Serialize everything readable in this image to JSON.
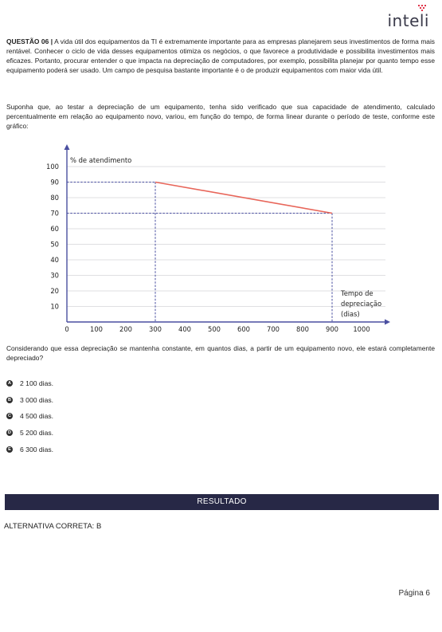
{
  "brand": {
    "name": "inteli",
    "accent": "#e0344a"
  },
  "question": {
    "label": "QUESTÃO 06 |",
    "paragraph1": "A vida útil dos equipamentos da TI é extremamente importante para as empresas planejarem seus investimentos de forma mais rentável. Conhecer o ciclo de vida desses equipamentos otimiza os negócios, o que favorece a produtividade e possibilita investimentos mais eficazes. Portanto, procurar entender o que impacta na depreciação de computadores, por exemplo, possibilita planejar por quanto tempo esse equipamento poderá ser usado. Um campo de pesquisa bastante importante é o de produzir equipamentos com maior vida útil.",
    "paragraph2": "Suponha que, ao testar a depreciação de um equipamento, tenha sido verificado que sua capacidade de atendimento, calculado percentualmente em relação ao equipamento novo, variou, em função do tempo, de forma linear durante o período de teste, conforme este gráfico:",
    "paragraph3": "Considerando que essa depreciação se mantenha constante, em quantos dias, a partir de um equipamento novo, ele estará completamente depreciado?"
  },
  "chart_data": {
    "type": "line",
    "ylabel": "% de atendimento",
    "xlabel_lines": [
      "Tempo de",
      "depreciação",
      "(dias)"
    ],
    "x_ticks": [
      "0",
      "100",
      "200",
      "300",
      "400",
      "500",
      "600",
      "700",
      "800",
      "900",
      "1000"
    ],
    "y_ticks": [
      "10",
      "20",
      "30",
      "40",
      "50",
      "60",
      "70",
      "80",
      "90",
      "100"
    ],
    "xlim": [
      0,
      1000
    ],
    "ylim": [
      0,
      100
    ],
    "grid": true,
    "series": [
      {
        "x": [
          300,
          900
        ],
        "y": [
          90,
          70
        ],
        "color": "#e8665a"
      }
    ],
    "guides": [
      {
        "x": 300,
        "y": 90
      },
      {
        "x": 900,
        "y": 70
      }
    ],
    "guide_color": "#4a4fa0",
    "axis_color": "#4a4fa0"
  },
  "options": [
    {
      "letter": "A",
      "text": "2 100 dias."
    },
    {
      "letter": "B",
      "text": "3 000 dias."
    },
    {
      "letter": "C",
      "text": "4 500 dias."
    },
    {
      "letter": "D",
      "text": "5 200 dias."
    },
    {
      "letter": "E",
      "text": "6 300 dias."
    }
  ],
  "result": {
    "title": "RESULTADO",
    "answer": "ALTERNATIVA CORRETA: B"
  },
  "footer": {
    "page": "Página 6"
  }
}
